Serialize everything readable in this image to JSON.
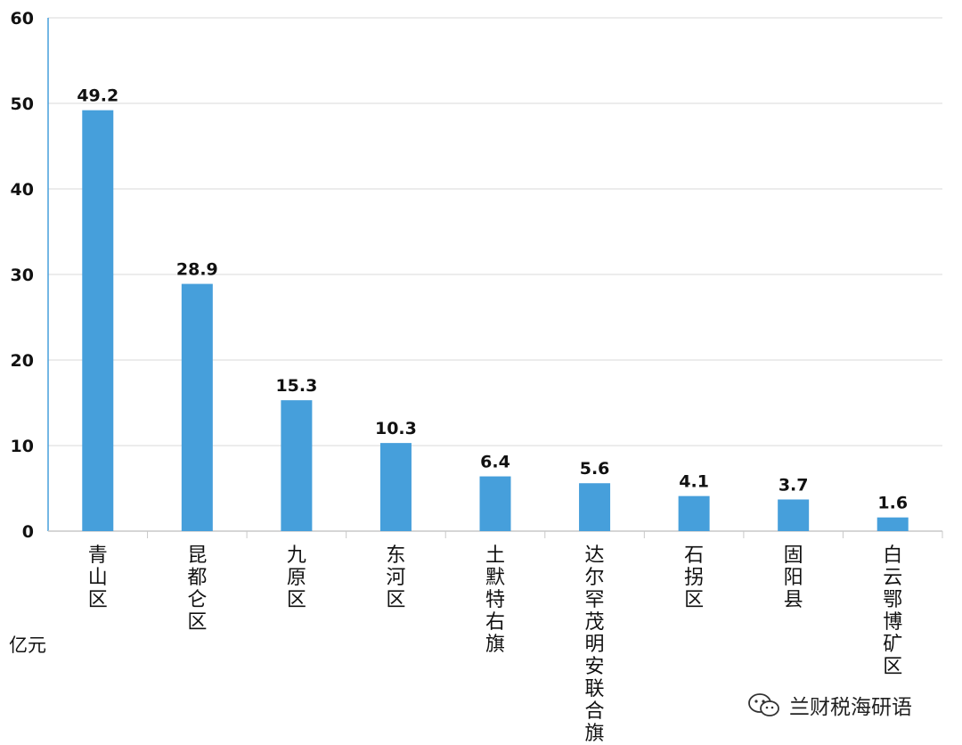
{
  "chart_data": {
    "type": "bar",
    "categories": [
      "青山区",
      "昆都仑区",
      "九原区",
      "东河区",
      "土默特右旗",
      "达尔罕茂明安联合旗",
      "石拐区",
      "固阳县",
      "白云鄂博矿区"
    ],
    "values": [
      49.2,
      28.9,
      15.3,
      10.3,
      6.4,
      5.6,
      4.1,
      3.7,
      1.6
    ],
    "value_labels": [
      "49.2",
      "28.9",
      "15.3",
      "10.3",
      "6.4",
      "5.6",
      "4.1",
      "3.7",
      "1.6"
    ],
    "ylim": [
      0,
      60
    ],
    "yticks": [
      "0",
      "10",
      "20",
      "30",
      "40",
      "50",
      "60"
    ],
    "ylabel": "亿元",
    "grid": true,
    "bar_color": "#469fdb"
  },
  "watermark": {
    "text": "兰财税海研语",
    "icon": "wechat-icon"
  }
}
